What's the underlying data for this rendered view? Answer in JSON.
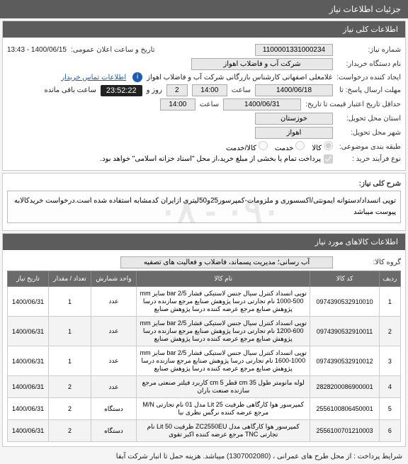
{
  "header": {
    "title": "جزئیات اطلاعات نیاز"
  },
  "sec1": {
    "title": "اطلاعات کلی نیاز",
    "need_no_lbl": "شماره نیاز:",
    "need_no": "1100001331000234",
    "ann_date_lbl": "تاریخ و ساعت اعلان عمومی:",
    "ann_date": "1400/06/15 - 13:43",
    "buyer_lbl": "نام دستگاه خریدار:",
    "buyer": "شرکت آب و فاضلاب اهواز",
    "creator_lbl": "ایجاد کننده درخواست:",
    "creator": "غلامعلى اصفهانى کارشناس بازرگانى شرکت آب و فاضلاب اهواز",
    "contact_link": "اطلاعات تماس خریدار",
    "reply_deadline_lbl": "مهلت ارسال پاسخ: تا",
    "reply_date": "1400/06/18",
    "time_lbl": "ساعت",
    "reply_time": "14:00",
    "remain_days": "2",
    "remain_lbl1": "روز و",
    "remain_time": "23:52:22",
    "remain_lbl2": "ساعت باقی مانده",
    "credit_lbl": "حداقل تاریخ اعتبار قیمت تا تاریخ:",
    "credit_date": "1400/06/31",
    "credit_time": "14:00",
    "province_lbl": "استان محل تحویل:",
    "province": "خوزستان",
    "city_lbl": "شهر محل تحویل:",
    "city": "اهواز",
    "topic_lbl": "طبقه بندی موضوعی:",
    "r_goods": "کالا",
    "r_service": "خدمت",
    "r_both": "کالا/خدمت",
    "prepay_lbl": "نوع فرآیند خرید :",
    "prepay_note": "پرداخت تمام یا بخشی از مبلغ خرید،از محل \"اسناد خزانه اسلامی\" خواهد بود."
  },
  "sec2": {
    "title": "شرح کلی نیاز:",
    "desc": "توپى انسداد/دستوانه ایمونتى/اکسسورى و ملزومات-کمپرسور25و50لیترى ازایران کدمشابه استفاده شده است.درخواست خریدکالابه پیوست میباشد"
  },
  "sec3": {
    "title": "اطلاعات کالاهای مورد نیاز",
    "group_lbl": "گروه کالا:",
    "group": "آب رسانی؛ مدیریت پسماند، فاضلاب و فعالیت های تصفیه",
    "cols": {
      "row": "ردیف",
      "code": "کد کالا",
      "name": "نام کالا",
      "unit": "واحد شمارش",
      "qty": "تعداد / مقدار",
      "date": "تاریخ نیاز"
    },
    "rows": [
      {
        "n": "1",
        "code": "0974390532910010",
        "name": "توپى انسداد کنترل سیال جنس لاستیکى فشار bar 2/5 سایز mm 1000-500 نام تجارتى درسا پژوهش صنایع مرجع سازنده درسا پژوهش صنایع مرجع عرضه کننده درسا پژوهش صنایع",
        "unit": "عدد",
        "qty": "1",
        "date": "1400/06/31"
      },
      {
        "n": "2",
        "code": "0974390532910011",
        "name": "توپى انسداد کنترل سیال جنس لاستیکى فشار bar 2/5 سایز mm 1200-600 نام تجارتى درسا پژوهش صنایع مرجع سازنده درسا پژوهش صنایع مرجع عرضه کننده درسا پژوهش صنایع",
        "unit": "عدد",
        "qty": "1",
        "date": "1400/06/31"
      },
      {
        "n": "3",
        "code": "0974390532910012",
        "name": "توپى انسداد کنترل سیال جنس لاستیکى فشار bar 2/5 سایز mm 1600-1000 نام تجارتى درسا پژوهش صنایع مرجع سازنده درسا پژوهش صنایع مرجع عرضه کننده درسا پژوهش صنایع",
        "unit": "عدد",
        "qty": "1",
        "date": "1400/06/31"
      },
      {
        "n": "4",
        "code": "2828200086900001",
        "name": "لوله مانومتر طول cm 35 قطر cm 5 کاربرد فیلتر صنعتى مرجع سازنده صنعت باران",
        "unit": "عدد",
        "qty": "2",
        "date": "1400/06/31"
      },
      {
        "n": "5",
        "code": "2556100806450001",
        "name": "کمپرسور هوا کارگاهى ظرفیت Lit 25 مدل 01 نام تجارتى M/N مرجع عرضه کننده نرگس نظرى نیا",
        "unit": "دستگاه",
        "qty": "2",
        "date": "1400/06/31"
      },
      {
        "n": "6",
        "code": "2556100701210003",
        "name": "کمپرسور هوا کارگاهى مدل ZC2550EU ظرفیت Lit 50 نام تجارتى TNC مرجع عرضه کننده اکبر تقوى",
        "unit": "دستگاه",
        "qty": "2",
        "date": "1400/06/31"
      }
    ]
  },
  "footer": "شرایط پرداخت : از محل طرح های عمرانی ، (1307002080) میباشد. هزینه حمل تا  انبار شرکت آبفا",
  "watermark": "٠٩٠ - ٠٨"
}
